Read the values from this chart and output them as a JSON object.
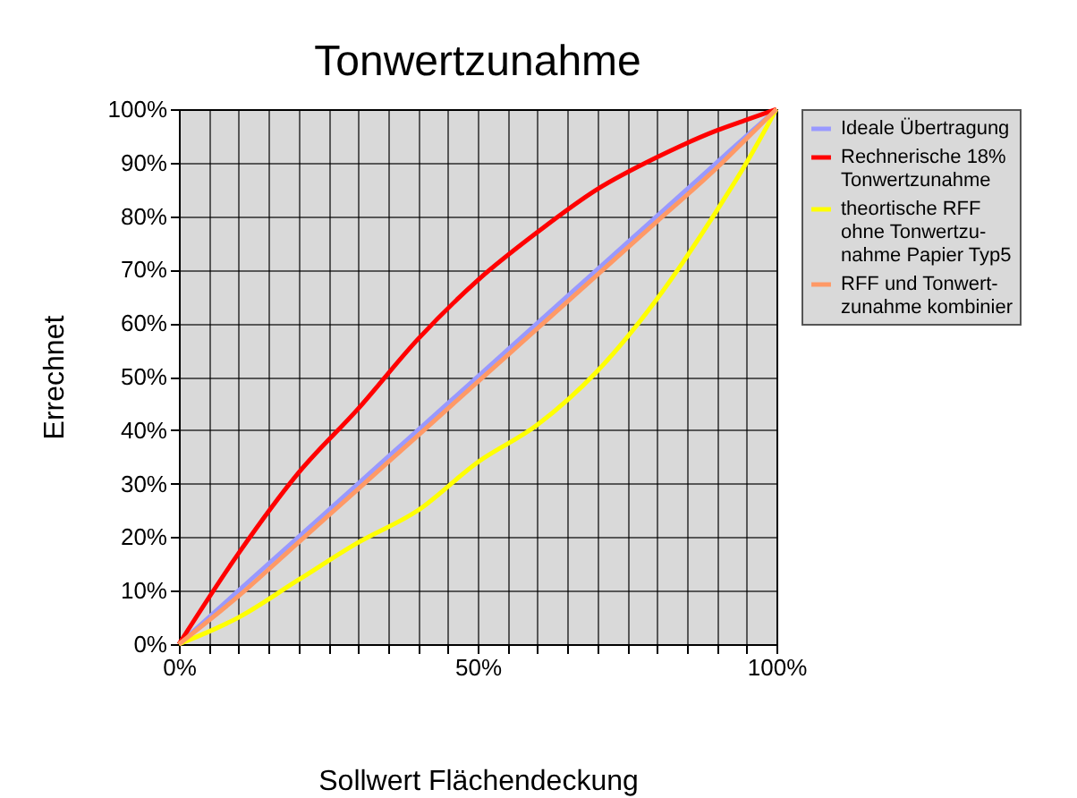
{
  "chart_data": {
    "type": "line",
    "title": "Tonwertzunahme",
    "xlabel": "Sollwert Flächendeckung",
    "ylabel": "Errechnet",
    "x": [
      0,
      10,
      20,
      30,
      40,
      50,
      60,
      70,
      80,
      90,
      95,
      100
    ],
    "series": [
      {
        "name": "Ideale Übertragung",
        "color": "#9999ff",
        "values": [
          0,
          10,
          20,
          30,
          40,
          50,
          60,
          70,
          80,
          90,
          95,
          100
        ]
      },
      {
        "name": "Rechnerische 18%\nTonwertzunahme",
        "color": "#ff0000",
        "values": [
          0,
          17,
          32,
          44,
          57,
          68,
          77,
          85,
          91,
          96,
          98,
          100
        ]
      },
      {
        "name": "theortische RFF\nohne Tonwertzu-\nnahme Papier Typ5",
        "color": "#ffff00",
        "values": [
          0,
          5,
          12,
          19,
          25,
          34,
          41,
          51,
          64.5,
          81,
          90,
          100
        ]
      },
      {
        "name": "RFF und Tonwert-\nzunahme kombinier",
        "color": "#ff9966",
        "values": [
          0,
          9,
          19,
          29,
          39,
          49,
          59,
          69,
          79,
          89,
          94.5,
          100
        ]
      }
    ],
    "xlim": [
      0,
      100
    ],
    "ylim": [
      0,
      100
    ],
    "xticks": [
      {
        "value": 0,
        "label": "0%"
      },
      {
        "value": 5,
        "label": null
      },
      {
        "value": 10,
        "label": null
      },
      {
        "value": 15,
        "label": null
      },
      {
        "value": 20,
        "label": null
      },
      {
        "value": 25,
        "label": null
      },
      {
        "value": 30,
        "label": null
      },
      {
        "value": 35,
        "label": null
      },
      {
        "value": 40,
        "label": null
      },
      {
        "value": 45,
        "label": null
      },
      {
        "value": 50,
        "label": "50%"
      },
      {
        "value": 55,
        "label": null
      },
      {
        "value": 60,
        "label": null
      },
      {
        "value": 65,
        "label": null
      },
      {
        "value": 70,
        "label": null
      },
      {
        "value": 75,
        "label": null
      },
      {
        "value": 80,
        "label": null
      },
      {
        "value": 85,
        "label": null
      },
      {
        "value": 90,
        "label": null
      },
      {
        "value": 95,
        "label": null
      },
      {
        "value": 100,
        "label": "100%"
      }
    ],
    "yticks": [
      {
        "value": 0,
        "label": "0%"
      },
      {
        "value": 10,
        "label": "10%"
      },
      {
        "value": 20,
        "label": "20%"
      },
      {
        "value": 30,
        "label": "30%"
      },
      {
        "value": 40,
        "label": "40%"
      },
      {
        "value": 50,
        "label": "50%"
      },
      {
        "value": 60,
        "label": "60%"
      },
      {
        "value": 70,
        "label": "70%"
      },
      {
        "value": 80,
        "label": "80%"
      },
      {
        "value": 90,
        "label": "90%"
      },
      {
        "value": 100,
        "label": "100%"
      }
    ],
    "grid": true,
    "legend": "right",
    "marker": "none",
    "line_style": "solid"
  }
}
